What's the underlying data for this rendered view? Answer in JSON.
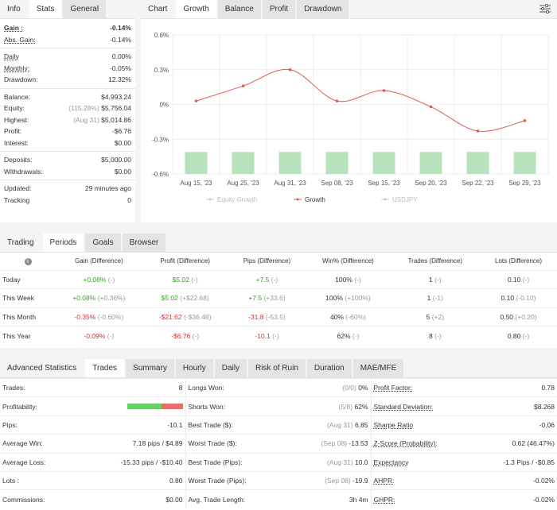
{
  "colors": {
    "negative": "#d9302c",
    "positive": "#3a9b2b",
    "growth": "#e05a52",
    "bar": "#b7e2bc"
  },
  "info": {
    "tabs": [
      "Info",
      "Stats",
      "General"
    ],
    "rows": [
      {
        "label": "Gain :",
        "value": "-0.14%",
        "neg": true,
        "bold": true,
        "u": true
      },
      {
        "label": "Abs. Gain:",
        "value": "-0.14%",
        "neg": true,
        "u": true
      },
      {
        "sep": true
      },
      {
        "label": "Daily",
        "value": "0.00%",
        "u": true
      },
      {
        "label": "Monthly:",
        "value": "-0.05%",
        "u": true
      },
      {
        "label": "Drawdown:",
        "value": "12.32%"
      },
      {
        "sep": true
      },
      {
        "label": "Balance:",
        "value": "$4,993.24"
      },
      {
        "label": "Equity:",
        "note": "(115.28%)",
        "value": "$5,756.04"
      },
      {
        "label": "Highest:",
        "note": "(Aug 31)",
        "value": "$5,014.86"
      },
      {
        "label": "Profit:",
        "value": "-$6.76",
        "neg": true
      },
      {
        "label": "Interest:",
        "value": "$0.00"
      },
      {
        "sep": true
      },
      {
        "label": "Deposits:",
        "value": "$5,000.00"
      },
      {
        "label": "Withdrawals:",
        "value": "$0.00"
      },
      {
        "sep": true
      },
      {
        "label": "Updated:",
        "value": "29 minutes ago"
      },
      {
        "label": "Tracking",
        "value": "0"
      }
    ]
  },
  "chart": {
    "tabs": [
      "Chart",
      "Growth",
      "Balance",
      "Profit",
      "Drawdown"
    ],
    "legend": [
      "Equity Growth",
      "Growth",
      "USDJPY"
    ]
  },
  "chart_data": {
    "type": "line",
    "categories": [
      "Aug 15, '23",
      "Aug 25, '23",
      "Aug 31, '23",
      "Sep 08, '23",
      "Sep 15, '23",
      "Sep 20, '23",
      "Sep 22, '23",
      "Sep 29, '23"
    ],
    "y_ticks": [
      "0.6%",
      "0.3%",
      "0%",
      "-0.3%",
      "-0.6%"
    ],
    "ylim": [
      -0.6,
      0.6
    ],
    "series": [
      {
        "name": "Growth",
        "values": [
          0.03,
          0.16,
          0.3,
          0.03,
          0.12,
          -0.02,
          -0.23,
          -0.14
        ]
      },
      {
        "name": "USDJPY",
        "type": "bar",
        "values": [
          -0.41,
          -0.41,
          -0.41,
          -0.41,
          -0.41,
          -0.41,
          -0.41,
          -0.41
        ]
      }
    ],
    "grid": true,
    "legend_position": "bottom"
  },
  "periods": {
    "tabs": [
      "Trading",
      "Periods",
      "Goals",
      "Browser"
    ],
    "headers": [
      "Gain (Difference)",
      "Profit (Difference)",
      "Pips (Difference)",
      "Win% (Difference)",
      "Trades (Difference)",
      "Lots (Difference)"
    ],
    "rows": [
      {
        "name": "Today",
        "cells": [
          [
            "+0.08%",
            "(-)",
            "pos"
          ],
          [
            "$5.02",
            "(-)",
            "pos"
          ],
          [
            "+7.5",
            "(-)",
            "pos"
          ],
          [
            "100%",
            "(-)",
            ""
          ],
          [
            "1",
            "(-)",
            ""
          ],
          [
            "0.10",
            "(-)",
            ""
          ]
        ]
      },
      {
        "name": "This Week",
        "cells": [
          [
            "+0.08%",
            "(+0.36%)",
            "pos"
          ],
          [
            "$5.02",
            "(+$22.68)",
            "pos"
          ],
          [
            "+7.5",
            "(+33.6)",
            "pos"
          ],
          [
            "100%",
            "(+100%)",
            ""
          ],
          [
            "1",
            "(-1)",
            ""
          ],
          [
            "0.10",
            "(-0.10)",
            ""
          ]
        ]
      },
      {
        "name": "This Month",
        "cells": [
          [
            "-0.35%",
            "(-0.60%)",
            "neg"
          ],
          [
            "-$21.62",
            "(-$36.48)",
            "neg"
          ],
          [
            "-31.8",
            "(-53.5)",
            "neg"
          ],
          [
            "40%",
            "(-60%)",
            ""
          ],
          [
            "5",
            "(+2)",
            ""
          ],
          [
            "0.50",
            "(+0.20)",
            ""
          ]
        ]
      },
      {
        "name": "This Year",
        "cells": [
          [
            "-0.09%",
            "(-)",
            "neg"
          ],
          [
            "-$6.76",
            "(-)",
            "neg"
          ],
          [
            "-10.1",
            "(-)",
            "neg"
          ],
          [
            "62%",
            "(-)",
            ""
          ],
          [
            "8",
            "(-)",
            ""
          ],
          [
            "0.80",
            "(-)",
            ""
          ]
        ]
      }
    ]
  },
  "advanced": {
    "tabs": [
      "Advanced Statistics",
      "Trades",
      "Summary",
      "Hourly",
      "Daily",
      "Risk of Ruin",
      "Duration",
      "MAE/MFE"
    ],
    "profitability": {
      "win_fraction": 0.62
    },
    "rows": [
      {
        "c1": [
          "Trades:",
          "8"
        ],
        "c2": [
          "Longs Won:",
          "(0/0)",
          "0%"
        ],
        "c3": [
          "Profit Factor:",
          "0.78"
        ]
      },
      {
        "c1": [
          "Profitability:",
          ""
        ],
        "c2": [
          "Shorts Won:",
          "(5/8)",
          "62%"
        ],
        "c3": [
          "Standard Deviation:",
          "$8.268"
        ]
      },
      {
        "c1": [
          "Pips:",
          "-10.1"
        ],
        "c2": [
          "Best Trade ($):",
          "(Aug 31)",
          "6.85"
        ],
        "c3": [
          "Sharpe Ratio",
          "-0.06"
        ]
      },
      {
        "c1": [
          "Average Win:",
          "7.18 pips / $4.89"
        ],
        "c2": [
          "Worst Trade ($):",
          "(Sep 08)",
          "-13.53"
        ],
        "c3": [
          "Z-Score (Probability):",
          "0.62 (46.47%)"
        ]
      },
      {
        "c1": [
          "Average Loss:",
          "-15.33 pips / -$10.40"
        ],
        "c2": [
          "Best Trade (Pips):",
          "(Aug 31)",
          "10.0"
        ],
        "c3": [
          "Expectancy",
          "-1.3 Pips / -$0.85"
        ]
      },
      {
        "c1": [
          "Lots :",
          "0.80"
        ],
        "c2": [
          "Worst Trade (Pips):",
          "(Sep 08)",
          "-19.9"
        ],
        "c3": [
          "AHPR:",
          "-0.02%"
        ]
      },
      {
        "c1": [
          "Commissions:",
          "$0.00"
        ],
        "c2": [
          "Avg. Trade Length:",
          "",
          "3h 4m"
        ],
        "c3": [
          "GHPR:",
          "-0.02%"
        ]
      }
    ]
  }
}
